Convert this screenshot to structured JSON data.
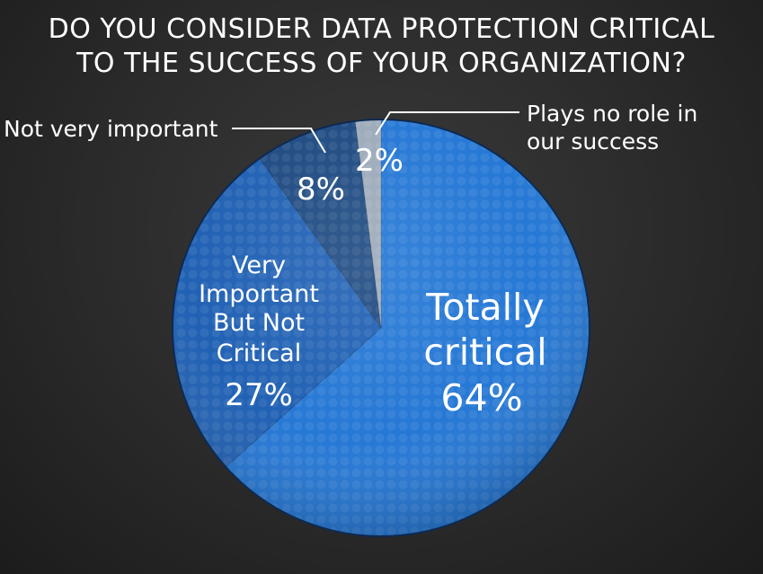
{
  "title_line1": "DO YOU CONSIDER DATA PROTECTION CRITICAL",
  "title_line2": "TO THE SUCCESS OF YOUR ORGANIZATION?",
  "chart_data": {
    "type": "pie",
    "title": "DO YOU CONSIDER DATA PROTECTION CRITICAL TO THE SUCCESS OF YOUR ORGANIZATION?",
    "slices": [
      {
        "label": "Totally critical",
        "value": 64,
        "display": "64%",
        "color": "#1f74d4"
      },
      {
        "label": "Very Important But Not Critical",
        "value": 27,
        "display": "27%",
        "color": "#1a5cb2"
      },
      {
        "label": "Not very important",
        "value": 8,
        "display": "8%",
        "color": "#19467f"
      },
      {
        "label": "Plays no role in our success",
        "value": 2,
        "display": "2%",
        "color": "#9aa8b8"
      }
    ],
    "labels": {
      "totally_1": "Totally",
      "totally_2": "critical",
      "very_1": "Very",
      "very_2": "Important",
      "very_3": "But Not",
      "very_4": "Critical",
      "not_very": "Not very important",
      "plays_1": "Plays no role in",
      "plays_2": "our success"
    }
  }
}
